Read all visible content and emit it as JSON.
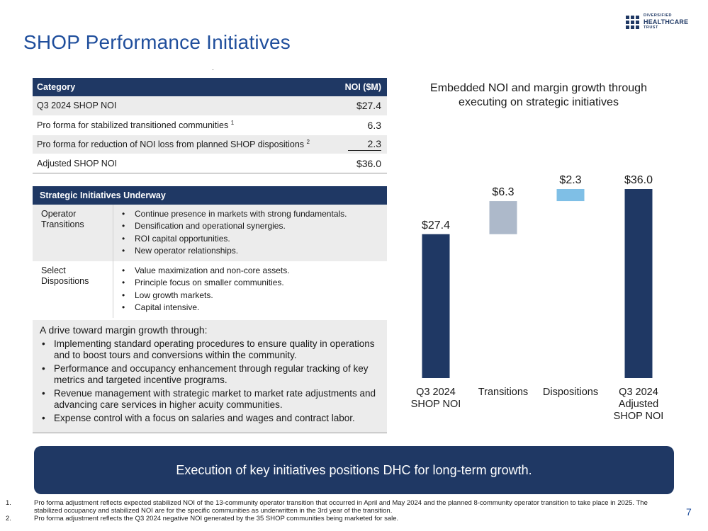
{
  "header": {
    "title": "SHOP Performance Initiatives",
    "logo_lines": [
      "DIVERSIFIED",
      "HEALTHCARE",
      "TRUST"
    ],
    "brand_color": "#1f3864"
  },
  "noi_table": {
    "headers": [
      "Category",
      "NOI ($M)"
    ],
    "rows": [
      {
        "label": "Q3 2024 SHOP NOI",
        "sup": "",
        "value": "$27.4"
      },
      {
        "label": "Pro forma for stabilized transitioned communities",
        "sup": "1",
        "value": "6.3"
      },
      {
        "label": "Pro forma for reduction of NOI loss from planned SHOP dispositions",
        "sup": "2",
        "value": "2.3"
      },
      {
        "label": "Adjusted SHOP NOI",
        "sup": "",
        "value": "$36.0"
      }
    ]
  },
  "strategic": {
    "header": "Strategic Initiatives Underway",
    "rows": [
      {
        "category": "Operator Transitions",
        "items": [
          "Continue presence in markets with strong fundamentals.",
          "Densification and operational synergies.",
          "ROI capital opportunities.",
          "New operator relationships."
        ]
      },
      {
        "category": "Select Dispositions",
        "items": [
          "Value maximization and non-core assets.",
          "Principle focus on smaller communities.",
          "Low growth markets.",
          "Capital intensive."
        ]
      }
    ]
  },
  "drive": {
    "intro": "A drive toward margin growth through:",
    "items": [
      "Implementing standard operating procedures to ensure quality in operations and to boost tours and conversions within the community.",
      "Performance and occupancy enhancement through regular tracking of key metrics and targeted incentive programs.",
      "Revenue management with strategic market to market rate adjustments and advancing care services in higher acuity communities.",
      "Expense control with a focus on salaries and wages and contract labor."
    ]
  },
  "chart_data": {
    "type": "bar",
    "subtype": "waterfall",
    "title": "Embedded NOI and margin growth through executing on strategic initiatives",
    "categories": [
      "Q3 2024 SHOP NOI",
      "Transitions",
      "Dispositions",
      "Q3 2024 Adjusted SHOP NOI"
    ],
    "category_lines": [
      [
        "Q3 2024",
        "SHOP NOI"
      ],
      [
        "Transitions"
      ],
      [
        "Dispositions"
      ],
      [
        "Q3 2024",
        "Adjusted",
        "SHOP NOI"
      ]
    ],
    "values": [
      27.4,
      6.3,
      2.3,
      36.0
    ],
    "bases": [
      0,
      27.4,
      33.7,
      0
    ],
    "labels": [
      "$27.4",
      "$6.3",
      "$2.3",
      "$36.0"
    ],
    "colors": [
      "#1f3864",
      "#adb9ca",
      "#7fbfe6",
      "#1f3864"
    ],
    "ylim": [
      0,
      36.0
    ],
    "xlabel": "",
    "ylabel": ""
  },
  "banner": {
    "text": "Execution of key initiatives positions DHC for long-term growth."
  },
  "footnotes": [
    {
      "num": "1.",
      "text": "Pro forma adjustment reflects expected stabilized NOI of the 13-community operator transition that occurred in April and May 2024 and the planned 8-community operator transition to take place in 2025. The stabilized occupancy and stabilized NOI are for the specific communities as underwritten in the 3rd year of the transition."
    },
    {
      "num": "2.",
      "text": "Pro forma adjustment reflects the Q3 2024 negative NOI generated by the 35 SHOP communities being marketed for sale."
    }
  ],
  "page_number": "7"
}
